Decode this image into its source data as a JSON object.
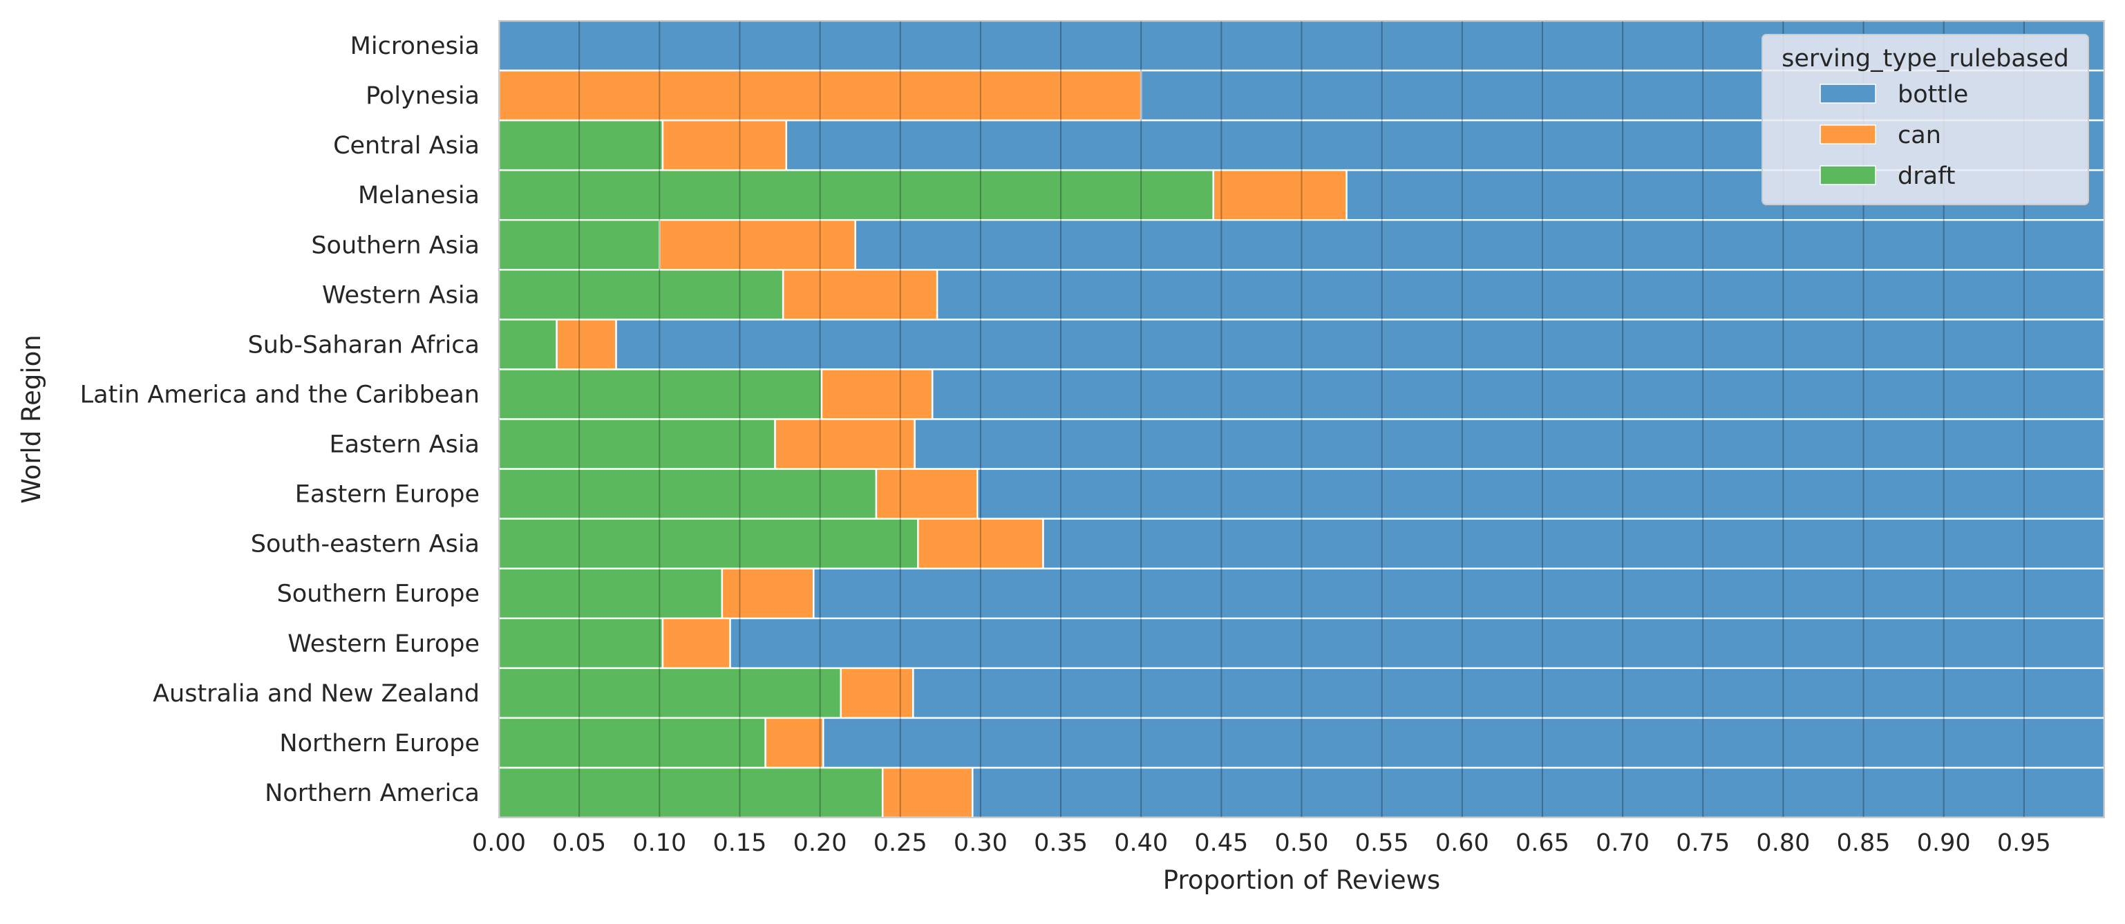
{
  "chart_data": {
    "type": "bar",
    "orientation": "horizontal",
    "stacked": true,
    "xlabel": "Proportion of Reviews",
    "ylabel": "World Region",
    "xlim": [
      0,
      1
    ],
    "xticks": [
      "0.00",
      "0.05",
      "0.10",
      "0.15",
      "0.20",
      "0.25",
      "0.30",
      "0.35",
      "0.40",
      "0.45",
      "0.50",
      "0.55",
      "0.60",
      "0.65",
      "0.70",
      "0.75",
      "0.80",
      "0.85",
      "0.90",
      "0.95"
    ],
    "grid": true,
    "legend_position": "top-right",
    "legend_title": "serving_type_rulebased",
    "categories": [
      "Micronesia",
      "Polynesia",
      "Central Asia",
      "Melanesia",
      "Southern Asia",
      "Western Asia",
      "Sub-Saharan Africa",
      "Latin America and the Caribbean",
      "Eastern Asia",
      "Eastern Europe",
      "South-eastern Asia",
      "Southern Europe",
      "Western Europe",
      "Australia and New Zealand",
      "Northern Europe",
      "Northern America"
    ],
    "series": [
      {
        "name": "draft",
        "color": "#5cb85c",
        "values": [
          0.0,
          0.0,
          0.102,
          0.445,
          0.1,
          0.177,
          0.036,
          0.201,
          0.172,
          0.235,
          0.261,
          0.139,
          0.102,
          0.213,
          0.166,
          0.239
        ]
      },
      {
        "name": "can",
        "color": "#ff9a40",
        "values": [
          0.0,
          0.4,
          0.077,
          0.083,
          0.122,
          0.096,
          0.037,
          0.069,
          0.087,
          0.063,
          0.078,
          0.057,
          0.042,
          0.045,
          0.036,
          0.056
        ]
      },
      {
        "name": "bottle",
        "color": "#5496c8",
        "values": [
          1.0,
          0.6,
          0.821,
          0.472,
          0.778,
          0.727,
          0.927,
          0.73,
          0.741,
          0.702,
          0.661,
          0.804,
          0.856,
          0.742,
          0.798,
          0.705
        ]
      }
    ],
    "legend_order": [
      "bottle",
      "can",
      "draft"
    ]
  }
}
